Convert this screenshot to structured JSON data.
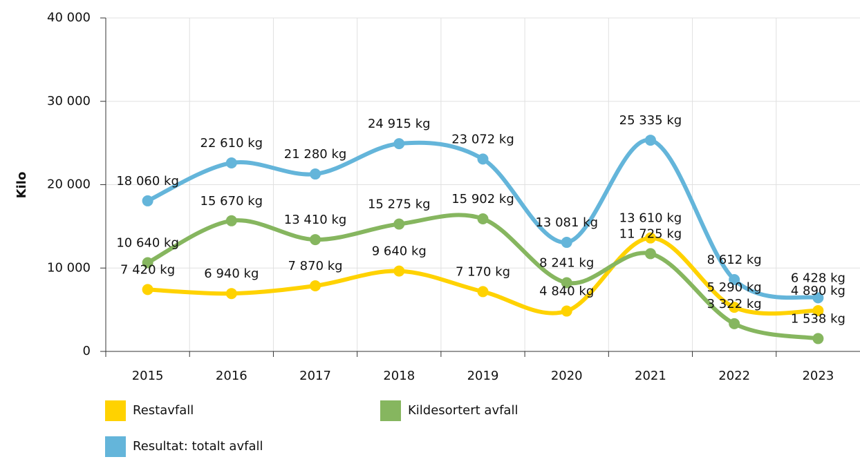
{
  "chart_data": {
    "type": "line",
    "y_label": "Kilo",
    "categories": [
      "2015",
      "2016",
      "2017",
      "2018",
      "2019",
      "2020",
      "2021",
      "2022",
      "2023"
    ],
    "ylim": [
      0,
      40000
    ],
    "yticks": [
      0,
      {
        "value": 10000,
        "label": "10 000"
      },
      {
        "value": 20000,
        "label": "20 000"
      },
      {
        "value": 30000,
        "label": "30 000"
      },
      {
        "value": 40000,
        "label": "40 000"
      }
    ],
    "grid": true,
    "legend": "bottom",
    "series": [
      {
        "name": "Restavfall",
        "color": "#ffd200",
        "values": [
          7420,
          6940,
          7870,
          9640,
          7170,
          4840,
          13610,
          5290,
          4890
        ],
        "value_labels": [
          "7 420 kg",
          "6 940 kg",
          "7 870 kg",
          "9 640 kg",
          "7 170 kg",
          "4 840 kg",
          "13 610 kg",
          "5 290 kg",
          "4 890 kg"
        ]
      },
      {
        "name": "Kildesortert avfall",
        "color": "#86b65f",
        "values": [
          10640,
          15670,
          13410,
          15275,
          15902,
          8241,
          11725,
          3322,
          1538
        ],
        "value_labels": [
          "10 640 kg",
          "15 670 kg",
          "13 410 kg",
          "15 275 kg",
          "15 902 kg",
          "8 241 kg",
          "11 725 kg",
          "3 322 kg",
          "1 538 kg"
        ]
      },
      {
        "name": "Resultat: totalt avfall",
        "color": "#64b5da",
        "values": [
          18060,
          22610,
          21280,
          24915,
          23072,
          13081,
          25335,
          8612,
          6428
        ],
        "value_labels": [
          "18 060 kg",
          "22 610 kg",
          "21 280 kg",
          "24 915 kg",
          "23 072 kg",
          "13 081 kg",
          "25 335 kg",
          "8 612 kg",
          "6 428 kg"
        ]
      }
    ]
  }
}
